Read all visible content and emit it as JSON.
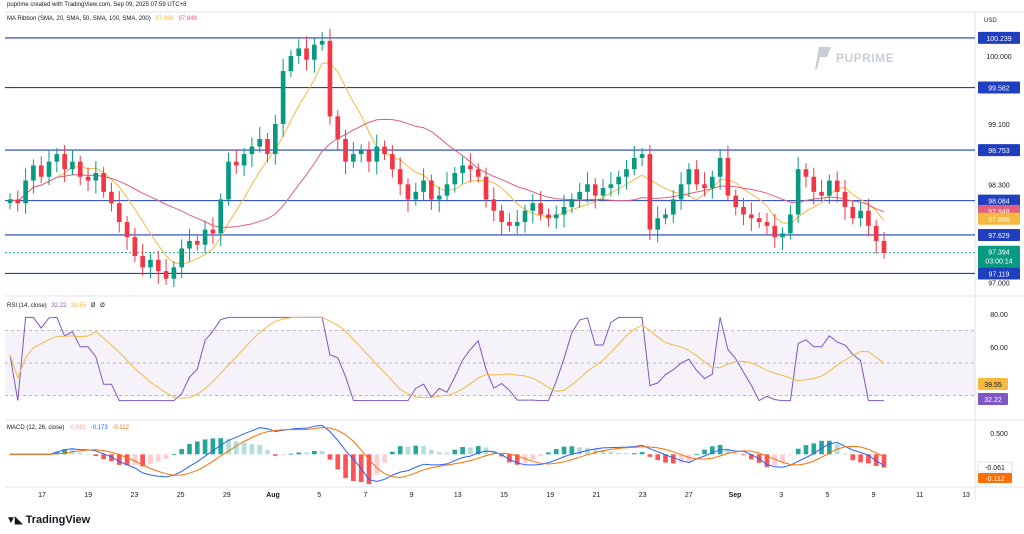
{
  "header": {
    "credit": "puprime created with TradingView.com, Sep 09, 2025 07:59 UTC+8",
    "ribbon_label": "MA Ribbon (SMA, 20, SMA, 50, SMA, 100, SMA, 200)",
    "ribbon_val1": "97.896",
    "ribbon_val2": "97.948",
    "currency": "USD"
  },
  "watermark": {
    "text": "PUPRIME"
  },
  "footer": {
    "logo_text": "TradingView",
    "logo_icon": "tradingview-logo-icon"
  },
  "colors": {
    "blue_line": "#1f3fbf",
    "up": "#089981",
    "down": "#f23645",
    "ma_fast": "#f5b942",
    "ma_slow": "#e0607e",
    "rsi": "#7e57c2",
    "rsi_ma": "#f5b942",
    "macd": "#2962ff",
    "signal": "#ff6d00"
  },
  "rsi_label": {
    "name": "RSI (14, close)",
    "v1": "32.22",
    "v2": "39.55",
    "v3": "Ø",
    "v4": "Ø"
  },
  "macd_label": {
    "name": "MACD (12, 26, close)",
    "v1": "-0.061",
    "v2": "-0.173",
    "v3": "-0.112"
  },
  "chart_data": [
    {
      "type": "candlestick",
      "title": "",
      "ylim": [
        96.9,
        100.45
      ],
      "price_ticks": [
        "100.000",
        "99.100",
        "98.300",
        "97.000"
      ],
      "horizontal_levels": [
        100.239,
        99.582,
        98.753,
        98.084,
        97.629,
        97.119
      ],
      "level_labels": [
        "100.239",
        "99.582",
        "98.753",
        "98.084",
        "97.629",
        "97.119"
      ],
      "ma_labels": [
        "97.948",
        "97.896"
      ],
      "last_price": "97.394",
      "countdown": "03:00:14",
      "x_ticks": [
        "17",
        "19",
        "23",
        "25",
        "29",
        "Aug",
        "5",
        "7",
        "9",
        "13",
        "15",
        "19",
        "21",
        "23",
        "27",
        "Sep",
        "3",
        "5",
        "9",
        "11",
        "13"
      ],
      "close": [
        98.1,
        98.05,
        98.35,
        98.55,
        98.4,
        98.6,
        98.7,
        98.5,
        98.6,
        98.4,
        98.35,
        98.45,
        98.2,
        98.05,
        97.8,
        97.6,
        97.35,
        97.2,
        97.3,
        97.15,
        97.05,
        97.2,
        97.45,
        97.55,
        97.5,
        97.7,
        97.65,
        98.1,
        98.6,
        98.55,
        98.7,
        98.8,
        98.9,
        98.7,
        99.1,
        99.8,
        100.0,
        100.1,
        99.95,
        100.15,
        100.2,
        99.2,
        98.9,
        98.6,
        98.7,
        98.75,
        98.6,
        98.8,
        98.7,
        98.5,
        98.3,
        98.1,
        98.2,
        98.35,
        98.1,
        98.15,
        98.3,
        98.45,
        98.55,
        98.5,
        98.4,
        98.1,
        97.95,
        97.8,
        97.75,
        97.8,
        97.95,
        98.05,
        97.9,
        97.85,
        97.9,
        98.0,
        98.1,
        98.2,
        98.3,
        98.15,
        98.25,
        98.3,
        98.4,
        98.5,
        98.65,
        98.7,
        97.7,
        97.85,
        97.9,
        98.1,
        98.3,
        98.5,
        98.3,
        98.25,
        98.4,
        98.65,
        98.15,
        98.0,
        97.9,
        97.85,
        97.8,
        97.75,
        97.6,
        97.65,
        97.9,
        98.5,
        98.4,
        98.2,
        98.15,
        98.35,
        98.2,
        98.0,
        97.85,
        97.95,
        97.75,
        97.55,
        97.394
      ],
      "series": [
        {
          "name": "97.896",
          "kind": "ma"
        },
        {
          "name": "97.948",
          "kind": "ma"
        }
      ]
    },
    {
      "type": "line",
      "title": "RSI (14, close)",
      "ylim": [
        20,
        85
      ],
      "ticks": [
        "80.00",
        "60.00"
      ],
      "bands": [
        70,
        50,
        30
      ],
      "last_values": [
        "39.55",
        "32.22"
      ]
    },
    {
      "type": "histogram",
      "title": "MACD (12, 26, close)",
      "ylim": [
        -0.7,
        0.62
      ],
      "ticks": [
        "0.500",
        "-0.061",
        "-0.112"
      ],
      "last_values": [
        "-0.061",
        "-0.112"
      ]
    }
  ]
}
